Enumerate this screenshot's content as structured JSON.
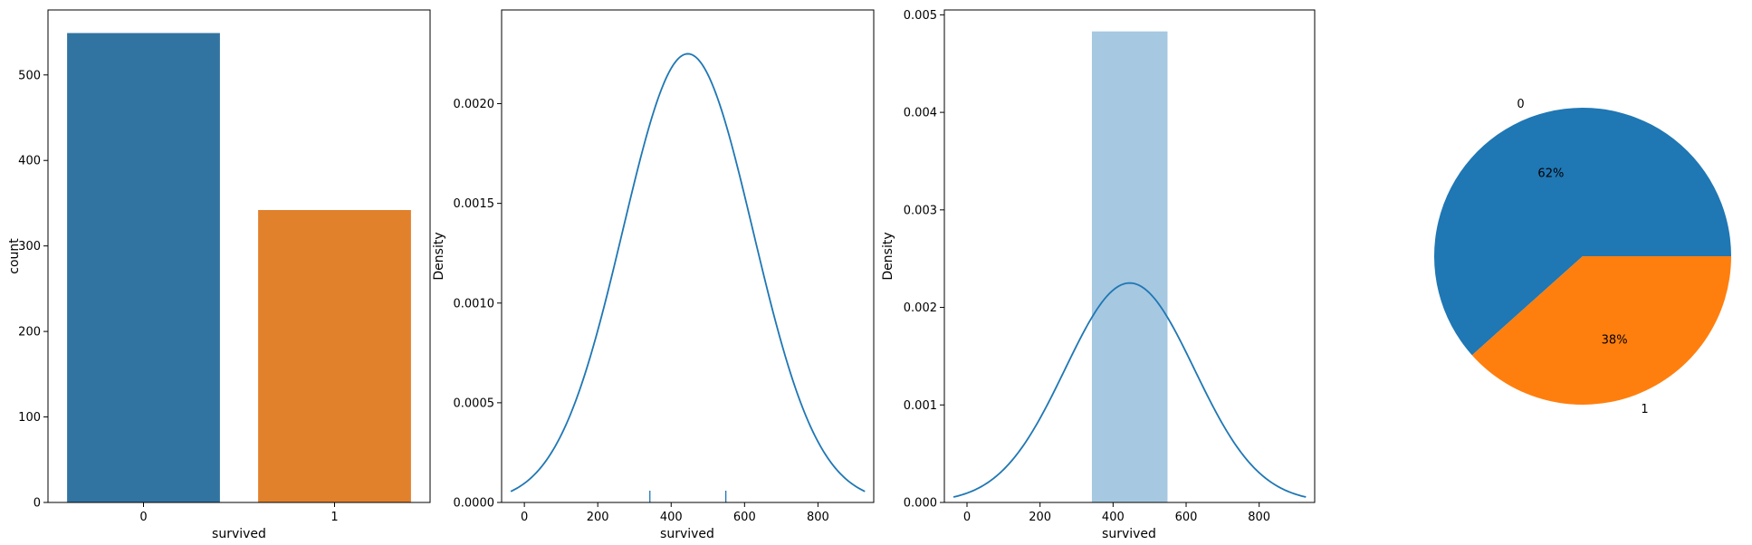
{
  "chart_data": [
    {
      "type": "bar",
      "xlabel": "survived",
      "ylabel": "count",
      "categories": [
        "0",
        "1"
      ],
      "values": [
        549,
        342
      ],
      "ylim": [
        0,
        576
      ],
      "yticks": [
        0,
        100,
        200,
        300,
        400,
        500
      ],
      "colors": [
        "#3274a1",
        "#e1812c"
      ],
      "grid": false
    },
    {
      "type": "line",
      "xlabel": "survived",
      "ylabel": "Density",
      "xlim": [
        -62,
        952
      ],
      "ylim": [
        0,
        0.00247
      ],
      "xticks": [
        0,
        200,
        400,
        600,
        800
      ],
      "yticks": [
        "0.0000",
        "0.0005",
        "0.0010",
        "0.0015",
        "0.0020"
      ],
      "kde": {
        "mean": 445.5,
        "sd": 177.3,
        "xmin": -37,
        "xmax": 928
      },
      "rug": [
        342,
        549
      ],
      "color": "#1f77b4",
      "grid": false
    },
    {
      "type": "bar",
      "xlabel": "survived",
      "ylabel": "Density",
      "xlim": [
        -62,
        952
      ],
      "ylim": [
        0,
        0.00505
      ],
      "xticks": [
        0,
        200,
        400,
        600,
        800
      ],
      "yticks": [
        "0.000",
        "0.001",
        "0.002",
        "0.003",
        "0.004",
        "0.005"
      ],
      "histogram": {
        "bin_start": 342,
        "bin_end": 549,
        "density": 0.00483
      },
      "kde": {
        "mean": 445.5,
        "sd": 177.3,
        "xmin": -37,
        "xmax": 928
      },
      "bar_color": "#a6c8e1",
      "line_color": "#1f77b4",
      "grid": false
    },
    {
      "type": "pie",
      "labels": [
        "0",
        "1"
      ],
      "values": [
        549,
        342
      ],
      "pct_labels": [
        "62%",
        "38%"
      ],
      "colors": [
        "#1f77b4",
        "#ff7f0e"
      ]
    }
  ]
}
